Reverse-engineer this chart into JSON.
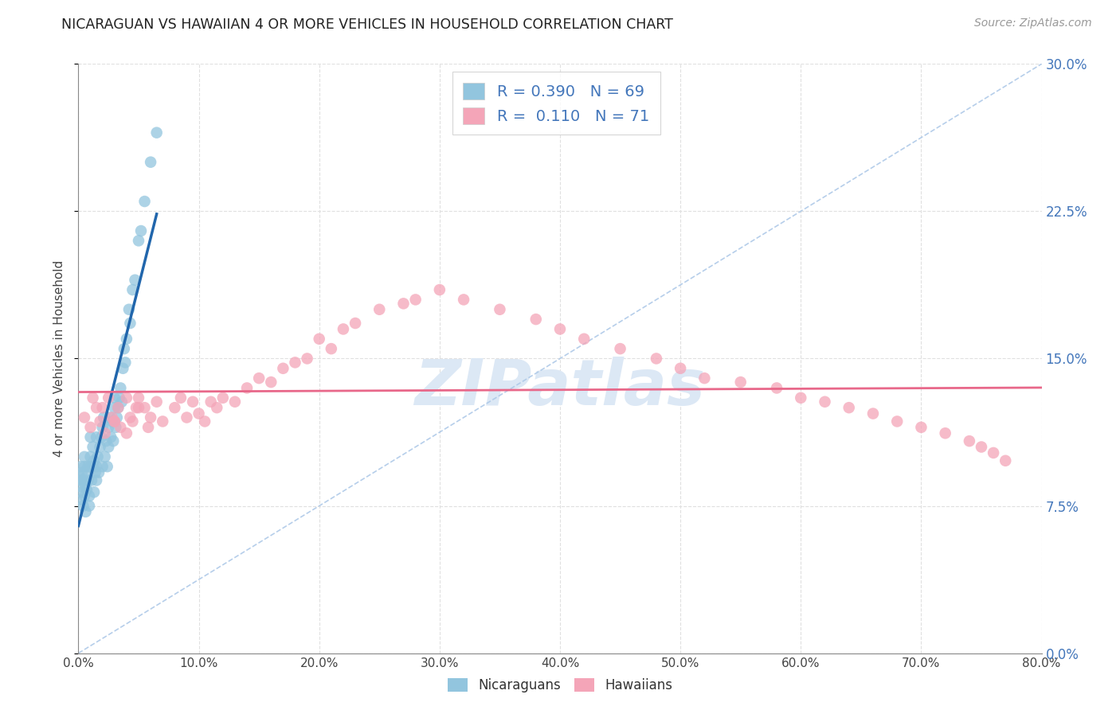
{
  "title": "NICARAGUAN VS HAWAIIAN 4 OR MORE VEHICLES IN HOUSEHOLD CORRELATION CHART",
  "source": "Source: ZipAtlas.com",
  "ylabel_label": "4 or more Vehicles in Household",
  "legend_labels": [
    "Nicaraguans",
    "Hawaiians"
  ],
  "nicaraguan_R": "0.390",
  "nicaraguan_N": "69",
  "hawaiian_R": "0.110",
  "hawaiian_N": "71",
  "blue_color": "#92c5de",
  "pink_color": "#f4a5b8",
  "blue_line_color": "#2166ac",
  "pink_line_color": "#d6604d",
  "diagonal_color": "#aec9e8",
  "title_color": "#222222",
  "label_color": "#4477bb",
  "watermark_color": "#dce8f5",
  "background_color": "#ffffff",
  "xlim": [
    0.0,
    0.8
  ],
  "ylim": [
    0.0,
    0.3
  ],
  "x_ticks": [
    0.0,
    0.1,
    0.2,
    0.3,
    0.4,
    0.5,
    0.6,
    0.7,
    0.8
  ],
  "y_ticks": [
    0.0,
    0.075,
    0.15,
    0.225,
    0.3
  ],
  "nic_x": [
    0.001,
    0.001,
    0.002,
    0.002,
    0.003,
    0.003,
    0.003,
    0.004,
    0.004,
    0.005,
    0.005,
    0.005,
    0.006,
    0.006,
    0.007,
    0.007,
    0.008,
    0.008,
    0.009,
    0.009,
    0.01,
    0.01,
    0.01,
    0.011,
    0.012,
    0.012,
    0.013,
    0.013,
    0.014,
    0.015,
    0.015,
    0.015,
    0.016,
    0.017,
    0.018,
    0.019,
    0.02,
    0.02,
    0.021,
    0.022,
    0.023,
    0.024,
    0.025,
    0.025,
    0.026,
    0.027,
    0.028,
    0.029,
    0.03,
    0.03,
    0.031,
    0.032,
    0.033,
    0.034,
    0.035,
    0.036,
    0.037,
    0.038,
    0.039,
    0.04,
    0.042,
    0.043,
    0.045,
    0.047,
    0.05,
    0.052,
    0.055,
    0.06,
    0.065
  ],
  "nic_y": [
    0.09,
    0.085,
    0.095,
    0.088,
    0.092,
    0.082,
    0.078,
    0.088,
    0.075,
    0.095,
    0.1,
    0.08,
    0.085,
    0.072,
    0.09,
    0.083,
    0.088,
    0.095,
    0.08,
    0.075,
    0.095,
    0.1,
    0.11,
    0.088,
    0.095,
    0.105,
    0.098,
    0.082,
    0.092,
    0.11,
    0.095,
    0.088,
    0.1,
    0.092,
    0.105,
    0.11,
    0.115,
    0.095,
    0.12,
    0.1,
    0.108,
    0.095,
    0.115,
    0.105,
    0.12,
    0.11,
    0.118,
    0.108,
    0.125,
    0.13,
    0.115,
    0.12,
    0.125,
    0.13,
    0.135,
    0.128,
    0.145,
    0.155,
    0.148,
    0.16,
    0.175,
    0.168,
    0.185,
    0.19,
    0.21,
    0.215,
    0.23,
    0.25,
    0.265
  ],
  "haw_x": [
    0.005,
    0.01,
    0.012,
    0.015,
    0.018,
    0.02,
    0.022,
    0.025,
    0.028,
    0.03,
    0.033,
    0.035,
    0.04,
    0.043,
    0.045,
    0.048,
    0.05,
    0.055,
    0.058,
    0.06,
    0.065,
    0.07,
    0.08,
    0.085,
    0.09,
    0.095,
    0.1,
    0.105,
    0.11,
    0.115,
    0.12,
    0.13,
    0.14,
    0.15,
    0.16,
    0.17,
    0.18,
    0.19,
    0.2,
    0.21,
    0.22,
    0.23,
    0.25,
    0.27,
    0.28,
    0.3,
    0.32,
    0.35,
    0.38,
    0.4,
    0.42,
    0.45,
    0.48,
    0.5,
    0.52,
    0.55,
    0.58,
    0.6,
    0.62,
    0.64,
    0.66,
    0.68,
    0.7,
    0.72,
    0.74,
    0.75,
    0.76,
    0.77,
    0.03,
    0.04,
    0.05
  ],
  "haw_y": [
    0.12,
    0.115,
    0.13,
    0.125,
    0.118,
    0.125,
    0.112,
    0.13,
    0.12,
    0.118,
    0.125,
    0.115,
    0.13,
    0.12,
    0.118,
    0.125,
    0.13,
    0.125,
    0.115,
    0.12,
    0.128,
    0.118,
    0.125,
    0.13,
    0.12,
    0.128,
    0.122,
    0.118,
    0.128,
    0.125,
    0.13,
    0.128,
    0.135,
    0.14,
    0.138,
    0.145,
    0.148,
    0.15,
    0.16,
    0.155,
    0.165,
    0.168,
    0.175,
    0.178,
    0.18,
    0.185,
    0.18,
    0.175,
    0.17,
    0.165,
    0.16,
    0.155,
    0.15,
    0.145,
    0.14,
    0.138,
    0.135,
    0.13,
    0.128,
    0.125,
    0.122,
    0.118,
    0.115,
    0.112,
    0.108,
    0.105,
    0.102,
    0.098,
    0.118,
    0.112,
    0.125
  ]
}
